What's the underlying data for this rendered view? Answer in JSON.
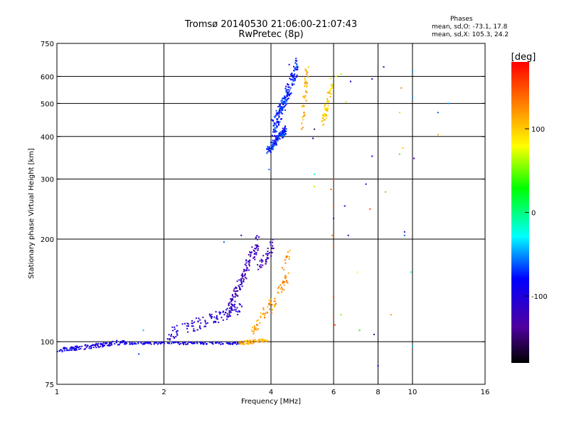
{
  "chart_data": {
    "type": "scatter",
    "title": "Tromsø 20140530 21:06:00-21:07:43",
    "subtitle": "RwPretec (8p)",
    "xlabel": "Frequency [MHz]",
    "ylabel": "Stationary phase Virtual Height [km]",
    "x_scale": "log",
    "y_scale": "log",
    "xlim": [
      1,
      16
    ],
    "ylim": [
      75,
      750
    ],
    "x_ticks": [
      1,
      2,
      4,
      6,
      8,
      10,
      16
    ],
    "x_tick_labels": [
      "1",
      "2",
      "4",
      "6",
      "8",
      "10",
      "16"
    ],
    "y_ticks": [
      75,
      100,
      200,
      300,
      400,
      500,
      600,
      750
    ],
    "y_tick_labels": [
      "75",
      "100",
      "200",
      "300",
      "400",
      "500",
      "600",
      "750"
    ],
    "x_grid": [
      2,
      4,
      6,
      8,
      10
    ],
    "y_grid": [
      100,
      200,
      300,
      400,
      500,
      600
    ],
    "grid": true,
    "annotation": {
      "title": "Phases",
      "line1": "mean, sd,O: -73.1, 17.8",
      "line2": "mean, sd,X: 105.3, 24.2"
    },
    "colorbar": {
      "label": "[deg]",
      "min": -180,
      "max": 180,
      "ticks": [
        100,
        0,
        -100
      ],
      "tick_labels": [
        "100",
        "0",
        "-100"
      ]
    },
    "series": [
      {
        "segments": [
          {
            "x0": 1.0,
            "x1": 1.55,
            "y0": 94,
            "y1": 100,
            "phase": -95,
            "jitter": 0.015,
            "n": 120
          },
          {
            "x0": 1.55,
            "x1": 3.3,
            "y0": 99,
            "y1": 99,
            "phase": -92,
            "jitter": 0.008,
            "n": 140
          },
          {
            "x0": 2.0,
            "x1": 3.3,
            "y0": 104,
            "y1": 125,
            "phase": -105,
            "jitter": 0.04,
            "n": 110
          },
          {
            "x0": 3.0,
            "x1": 3.7,
            "y0": 120,
            "y1": 200,
            "phase": -120,
            "jitter": 0.05,
            "n": 140
          },
          {
            "x0": 3.7,
            "x1": 4.1,
            "y0": 165,
            "y1": 195,
            "phase": -125,
            "jitter": 0.04,
            "n": 40
          },
          {
            "x0": 3.9,
            "x1": 4.4,
            "y0": 360,
            "y1": 420,
            "phase": -75,
            "jitter": 0.025,
            "n": 130
          },
          {
            "x0": 4.05,
            "x1": 4.75,
            "y0": 420,
            "y1": 640,
            "phase": -75,
            "jitter": 0.06,
            "n": 200
          }
        ],
        "points": [
          {
            "x": 4.5,
            "y": 650,
            "phase": -110
          },
          {
            "x": 3.95,
            "y": 320,
            "phase": -60
          },
          {
            "x": 1.7,
            "y": 92,
            "phase": -70
          },
          {
            "x": 1.75,
            "y": 108,
            "phase": -40
          },
          {
            "x": 2.95,
            "y": 196,
            "phase": -60
          },
          {
            "x": 3.3,
            "y": 205,
            "phase": -120
          }
        ]
      },
      {
        "segments": [
          {
            "x0": 3.25,
            "x1": 3.9,
            "y0": 99,
            "y1": 101,
            "phase": 110,
            "jitter": 0.012,
            "n": 60
          },
          {
            "x0": 3.55,
            "x1": 4.0,
            "y0": 108,
            "y1": 130,
            "phase": 120,
            "jitter": 0.04,
            "n": 40
          },
          {
            "x0": 4.0,
            "x1": 4.5,
            "y0": 125,
            "y1": 160,
            "phase": 125,
            "jitter": 0.04,
            "n": 40
          },
          {
            "x0": 4.9,
            "x1": 5.05,
            "y0": 430,
            "y1": 620,
            "phase": 115,
            "jitter": 0.05,
            "n": 45
          },
          {
            "x0": 5.6,
            "x1": 5.95,
            "y0": 440,
            "y1": 580,
            "phase": 100,
            "jitter": 0.04,
            "n": 55
          },
          {
            "x0": 4.3,
            "x1": 4.55,
            "y0": 165,
            "y1": 185,
            "phase": 120,
            "jitter": 0.03,
            "n": 12
          }
        ],
        "points": [
          {
            "x": 6.0,
            "y": 300,
            "phase": 160
          },
          {
            "x": 6.0,
            "y": 250,
            "phase": 150
          },
          {
            "x": 6.0,
            "y": 230,
            "phase": -130
          },
          {
            "x": 5.95,
            "y": 205,
            "phase": 130
          },
          {
            "x": 6.0,
            "y": 190,
            "phase": 150
          },
          {
            "x": 6.0,
            "y": 135,
            "phase": 160
          },
          {
            "x": 6.0,
            "y": 118,
            "phase": 150
          },
          {
            "x": 6.05,
            "y": 112,
            "phase": 150
          },
          {
            "x": 5.9,
            "y": 280,
            "phase": 140
          },
          {
            "x": 6.1,
            "y": 600,
            "phase": 80
          },
          {
            "x": 6.3,
            "y": 610,
            "phase": 60
          },
          {
            "x": 6.5,
            "y": 505,
            "phase": 60
          },
          {
            "x": 6.3,
            "y": 120,
            "phase": 50
          },
          {
            "x": 5.3,
            "y": 420,
            "phase": -150
          },
          {
            "x": 5.25,
            "y": 395,
            "phase": -100
          },
          {
            "x": 5.3,
            "y": 310,
            "phase": -20
          },
          {
            "x": 5.3,
            "y": 285,
            "phase": 60
          },
          {
            "x": 6.45,
            "y": 250,
            "phase": -100
          },
          {
            "x": 6.6,
            "y": 205,
            "phase": -120
          },
          {
            "x": 6.7,
            "y": 580,
            "phase": -100
          },
          {
            "x": 7.0,
            "y": 160,
            "phase": 80
          },
          {
            "x": 7.1,
            "y": 108,
            "phase": 20
          },
          {
            "x": 7.4,
            "y": 290,
            "phase": -120
          },
          {
            "x": 7.6,
            "y": 245,
            "phase": 150
          },
          {
            "x": 7.7,
            "y": 350,
            "phase": -100
          },
          {
            "x": 7.8,
            "y": 105,
            "phase": -140
          },
          {
            "x": 7.7,
            "y": 590,
            "phase": -110
          },
          {
            "x": 8.0,
            "y": 85,
            "phase": -100
          },
          {
            "x": 8.3,
            "y": 640,
            "phase": -120
          },
          {
            "x": 8.4,
            "y": 275,
            "phase": 120
          },
          {
            "x": 8.7,
            "y": 120,
            "phase": 120
          },
          {
            "x": 9.2,
            "y": 355,
            "phase": 40
          },
          {
            "x": 9.2,
            "y": 470,
            "phase": 100
          },
          {
            "x": 9.3,
            "y": 555,
            "phase": 130
          },
          {
            "x": 9.4,
            "y": 370,
            "phase": 100
          },
          {
            "x": 9.5,
            "y": 205,
            "phase": -60
          },
          {
            "x": 9.5,
            "y": 210,
            "phase": -120
          },
          {
            "x": 9.9,
            "y": 160,
            "phase": -30
          },
          {
            "x": 10.0,
            "y": 97,
            "phase": -40
          },
          {
            "x": 10.0,
            "y": 520,
            "phase": -50
          },
          {
            "x": 10.1,
            "y": 345,
            "phase": -120
          },
          {
            "x": 10.0,
            "y": 620,
            "phase": -50
          },
          {
            "x": 11.8,
            "y": 470,
            "phase": -60
          },
          {
            "x": 11.8,
            "y": 405,
            "phase": 110
          },
          {
            "x": 12.6,
            "y": 500,
            "phase": -50
          }
        ]
      }
    ]
  }
}
